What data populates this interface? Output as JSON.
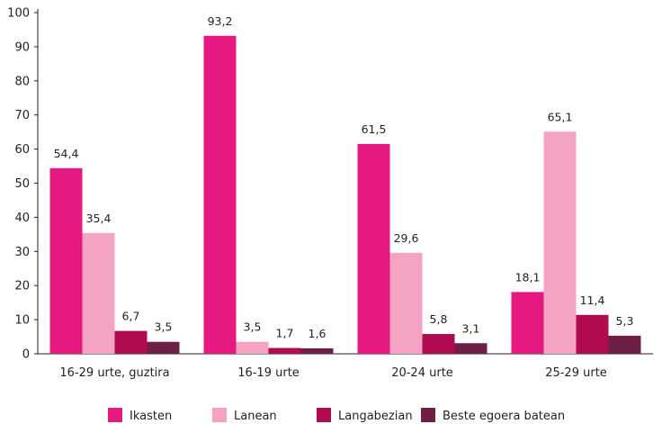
{
  "chart_data": {
    "type": "bar",
    "title": "",
    "xlabel": "",
    "ylabel": "",
    "ylim": [
      0,
      100
    ],
    "yticks": [
      "0",
      "10",
      "20",
      "30",
      "40",
      "50",
      "60",
      "70",
      "80",
      "90",
      "100"
    ],
    "categories": [
      "16-29 urte, guztira",
      "16-19 urte",
      "20-24 urte",
      "25-29 urte"
    ],
    "series": [
      {
        "name": "Ikasten",
        "color": "#e5197f",
        "values": [
          54.4,
          93.2,
          61.5,
          18.1
        ],
        "labels": [
          "54,4",
          "93,2",
          "61,5",
          "18,1"
        ]
      },
      {
        "name": "Lanean",
        "color": "#f5a3c2",
        "values": [
          35.4,
          3.5,
          29.6,
          65.1
        ],
        "labels": [
          "35,4",
          "3,5",
          "29,6",
          "65,1"
        ]
      },
      {
        "name": "Langabezian",
        "color": "#b00a50",
        "values": [
          6.7,
          1.7,
          5.8,
          11.4
        ],
        "labels": [
          "6,7",
          "1,7",
          "5,8",
          "11,4"
        ]
      },
      {
        "name": "Beste egoera batean",
        "color": "#6e1f45",
        "values": [
          3.5,
          1.6,
          3.1,
          5.3
        ],
        "labels": [
          "3,5",
          "1,6",
          "3,1",
          "5,3"
        ]
      }
    ],
    "grid": false,
    "legend": "bottom"
  }
}
